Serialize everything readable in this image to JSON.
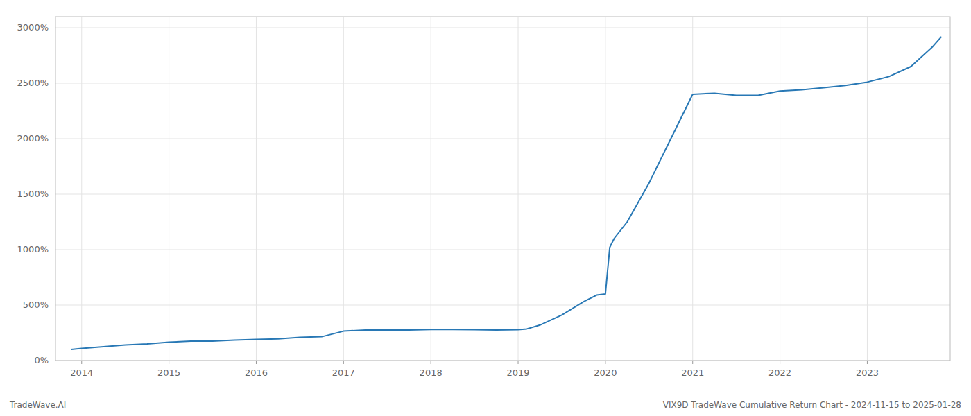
{
  "chart_data": {
    "type": "line",
    "annotations": [
      "TradeWave.AI",
      "VIX9D TradeWave Cumulative Return Chart - 2024-11-15 to 2025-01-28"
    ],
    "x": [
      2013.88,
      2014.0,
      2014.25,
      2014.5,
      2014.75,
      2015.0,
      2015.25,
      2015.5,
      2015.75,
      2016.0,
      2016.25,
      2016.5,
      2016.75,
      2017.0,
      2017.25,
      2017.5,
      2017.75,
      2018.0,
      2018.1,
      2018.25,
      2018.5,
      2018.75,
      2019.0,
      2019.1,
      2019.25,
      2019.5,
      2019.75,
      2019.9,
      2020.0,
      2020.05,
      2020.1,
      2020.25,
      2020.5,
      2020.75,
      2021.0,
      2021.25,
      2021.5,
      2021.75,
      2022.0,
      2022.25,
      2022.5,
      2022.75,
      2023.0,
      2023.25,
      2023.5,
      2023.75,
      2023.85
    ],
    "values": [
      100,
      110,
      125,
      140,
      150,
      165,
      175,
      175,
      185,
      190,
      195,
      210,
      215,
      265,
      275,
      275,
      275,
      280,
      280,
      280,
      278,
      275,
      278,
      285,
      320,
      410,
      530,
      590,
      600,
      1020,
      1100,
      1250,
      1600,
      2000,
      2400,
      2410,
      2390,
      2390,
      2430,
      2440,
      2460,
      2480,
      2510,
      2560,
      2650,
      2830,
      2920
    ],
    "color": "#2878b5",
    "xlim": [
      2013.7,
      2023.95
    ],
    "ylim": [
      0,
      3100
    ],
    "xticks": [
      2014,
      2015,
      2016,
      2017,
      2018,
      2019,
      2020,
      2021,
      2022,
      2023
    ],
    "yticks": [
      {
        "value": 0,
        "label": "0%"
      },
      {
        "value": 500,
        "label": "500%"
      },
      {
        "value": 1000,
        "label": "1000%"
      },
      {
        "value": 1500,
        "label": "1500%"
      },
      {
        "value": 2000,
        "label": "2000%"
      },
      {
        "value": 2500,
        "label": "2500%"
      },
      {
        "value": 3000,
        "label": "3000%"
      }
    ],
    "grid": true
  }
}
